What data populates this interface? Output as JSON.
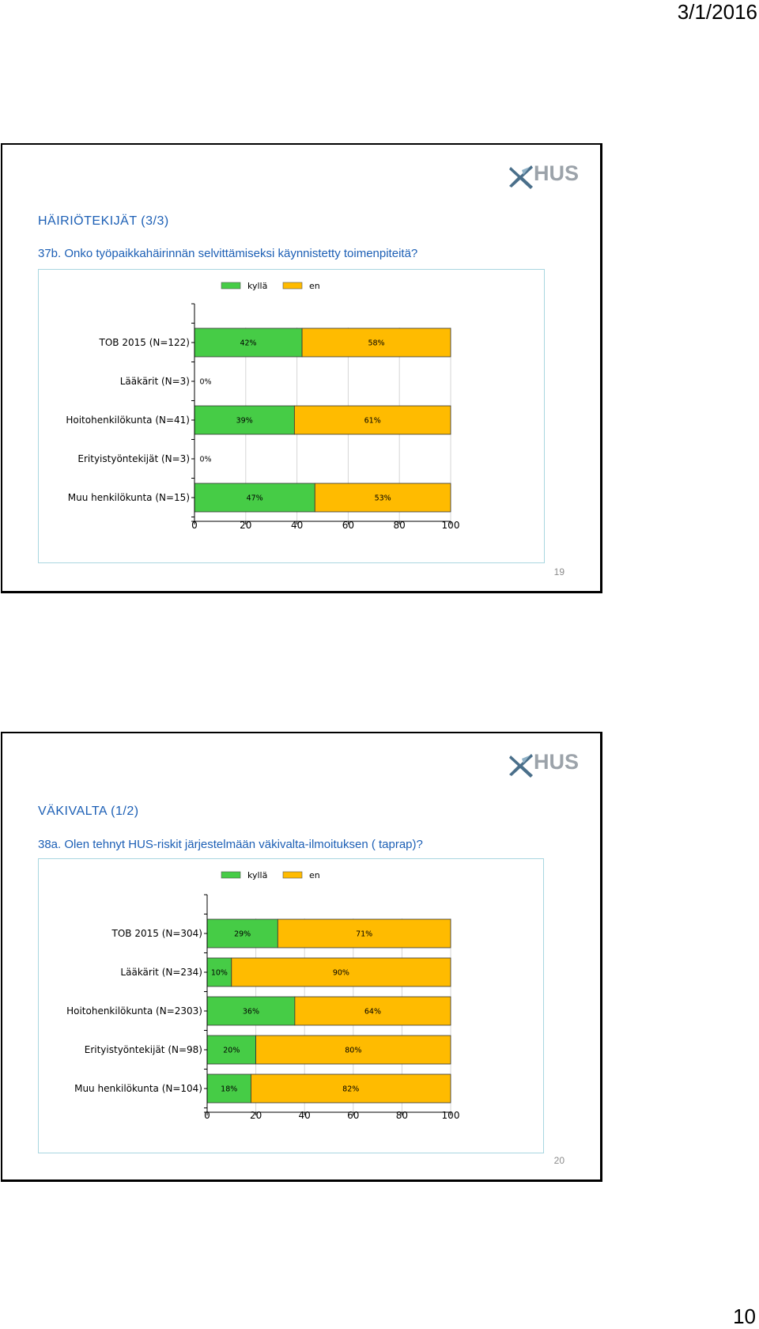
{
  "page": {
    "date": "3/1/2016",
    "number": "10"
  },
  "colors": {
    "yes": "#46cc46",
    "no": "#ffbb00",
    "title": "#1c5fb5",
    "frame": "#a9d6e0"
  },
  "logo": {
    "text": "HUS"
  },
  "slides": [
    {
      "title": "HÄIRIÖTEKIJÄT (3/3)",
      "question": "37b. Onko työpaikkahäirinnän selvittämiseksi käynnistetty toimenpiteitä?",
      "slide_number": "19",
      "chart_data": {
        "type": "bar",
        "orientation": "horizontal",
        "stacked": true,
        "categories": [
          "TOB 2015 (N=122)",
          "Lääkärit (N=3)",
          "Hoitohenkilökunta (N=41)",
          "Erityistyöntekijät (N=3)",
          "Muu henkilökunta (N=15)"
        ],
        "series": [
          {
            "name": "kyllä",
            "values": [
              42,
              0,
              39,
              0,
              47
            ],
            "labels": [
              "42%",
              "0%",
              "39%",
              "0%",
              "47%"
            ]
          },
          {
            "name": "en",
            "values": [
              58,
              0,
              61,
              0,
              53
            ],
            "labels": [
              "58%",
              "",
              "61%",
              "",
              "53%"
            ]
          }
        ],
        "xlim": [
          0,
          100
        ],
        "xticks": [
          "0",
          "20",
          "40",
          "60",
          "80",
          "100"
        ],
        "grid": true,
        "legend": "top"
      }
    },
    {
      "title": "VÄKIVALTA (1/2)",
      "question": "38a. Olen tehnyt HUS-riskit järjestelmään väkivalta-ilmoituksen ( taprap)?",
      "slide_number": "20",
      "chart_data": {
        "type": "bar",
        "orientation": "horizontal",
        "stacked": true,
        "categories": [
          "TOB 2015 (N=304)",
          "Lääkärit (N=234)",
          "Hoitohenkilökunta (N=2303)",
          "Erityistyöntekijät (N=98)",
          "Muu henkilökunta (N=104)"
        ],
        "series": [
          {
            "name": "kyllä",
            "values": [
              29,
              10,
              36,
              20,
              18
            ],
            "labels": [
              "29%",
              "10%",
              "36%",
              "20%",
              "18%"
            ]
          },
          {
            "name": "en",
            "values": [
              71,
              90,
              64,
              80,
              82
            ],
            "labels": [
              "71%",
              "90%",
              "64%",
              "80%",
              "82%"
            ]
          }
        ],
        "xlim": [
          0,
          100
        ],
        "xticks": [
          "0",
          "20",
          "40",
          "60",
          "80",
          "100"
        ],
        "grid": true,
        "legend": "top"
      }
    }
  ]
}
